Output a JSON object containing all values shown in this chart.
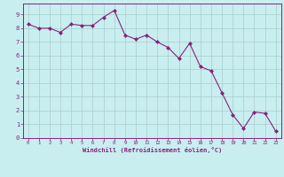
{
  "x": [
    0,
    1,
    2,
    3,
    4,
    5,
    6,
    7,
    8,
    9,
    10,
    11,
    12,
    13,
    14,
    15,
    16,
    17,
    18,
    19,
    20,
    21,
    22,
    23
  ],
  "y": [
    8.3,
    8.0,
    8.0,
    7.7,
    8.3,
    8.2,
    8.2,
    8.8,
    9.3,
    7.5,
    7.2,
    7.5,
    7.0,
    6.6,
    5.8,
    6.9,
    5.2,
    4.9,
    3.3,
    1.7,
    0.7,
    1.9,
    1.8,
    0.5
  ],
  "line_color": "#882277",
  "marker": "D",
  "marker_size": 2,
  "bg_color": "#c8eef0",
  "grid_color": "#aacccc",
  "xlabel": "Windchill (Refroidissement éolien,°C)",
  "xlabel_color": "#882277",
  "tick_color": "#882277",
  "spine_color": "#882277",
  "xlim": [
    -0.5,
    23.5
  ],
  "ylim": [
    0,
    9.8
  ],
  "yticks": [
    0,
    1,
    2,
    3,
    4,
    5,
    6,
    7,
    8,
    9
  ],
  "xticks": [
    0,
    1,
    2,
    3,
    4,
    5,
    6,
    7,
    8,
    9,
    10,
    11,
    12,
    13,
    14,
    15,
    16,
    17,
    18,
    19,
    20,
    21,
    22,
    23
  ]
}
